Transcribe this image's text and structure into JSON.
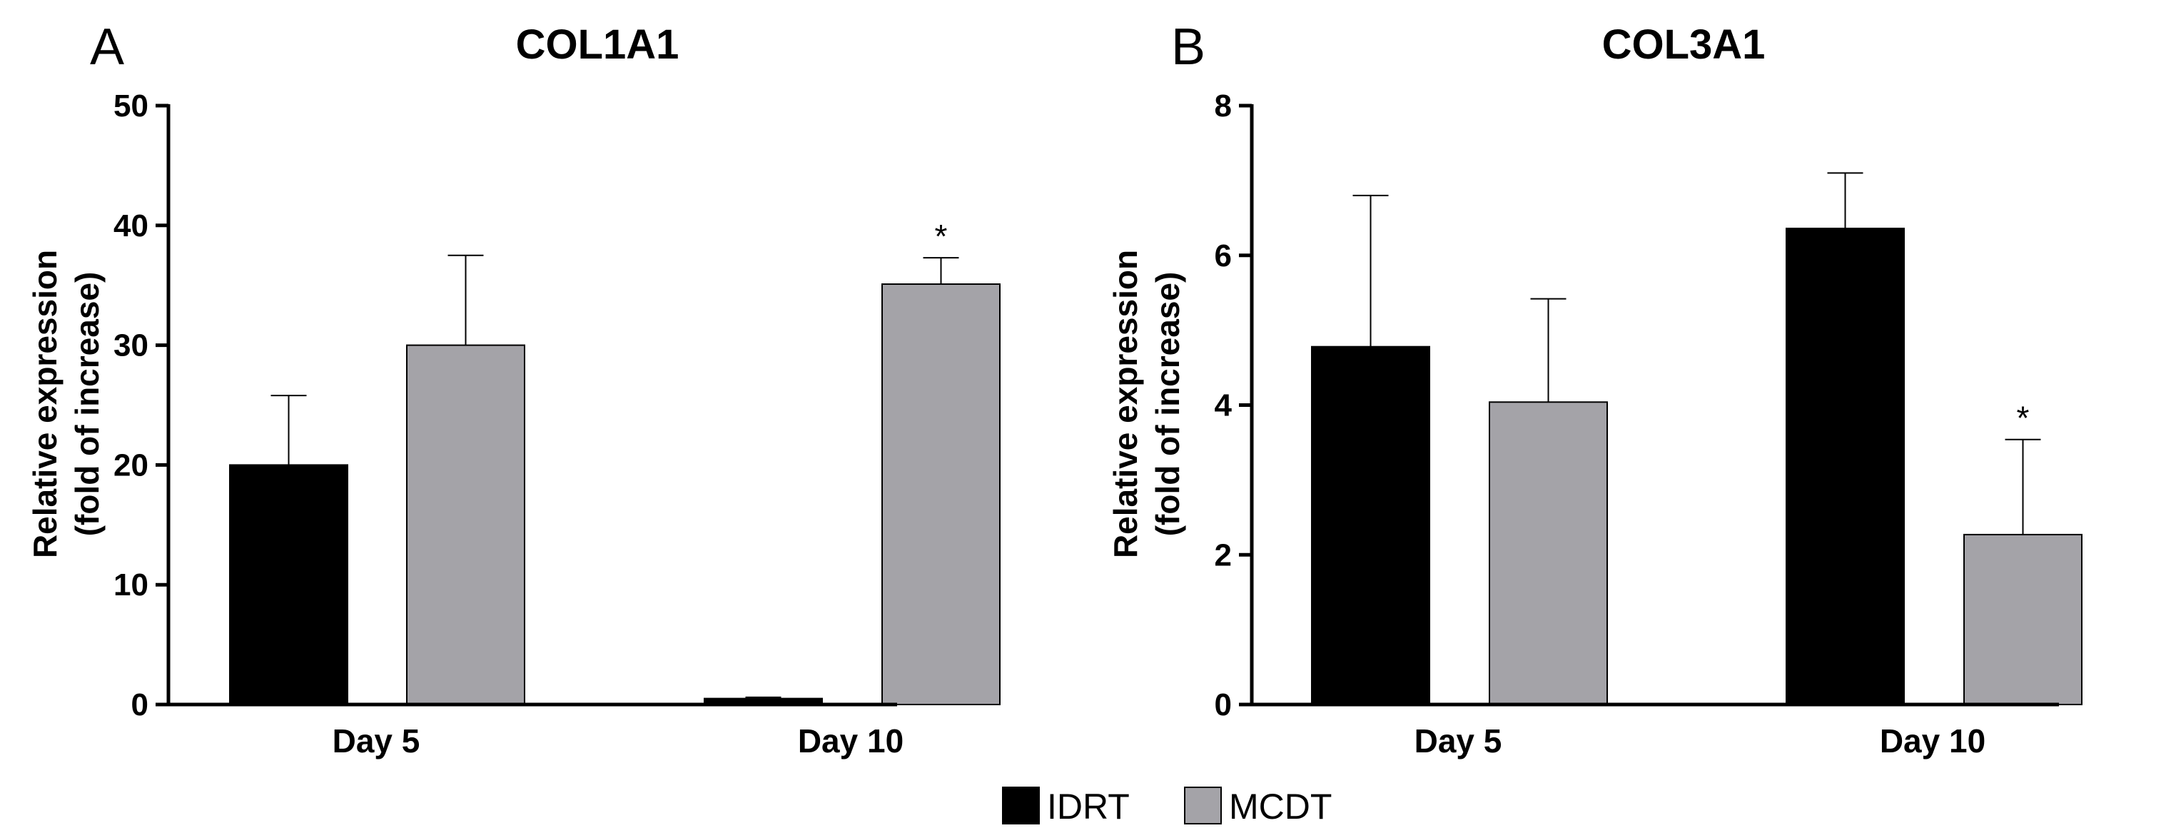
{
  "colors": {
    "IDRT": "#000000",
    "MCDT": "#a4a3a8",
    "axis": "#000000"
  },
  "legend": {
    "items": [
      {
        "name": "IDRT",
        "color": "#000000"
      },
      {
        "name": "MCDT",
        "color": "#a4a3a8"
      }
    ]
  },
  "chart_data": [
    {
      "type": "bar",
      "panel": "A",
      "title": "COL1A1",
      "ylabel_line1": "Relative expression",
      "ylabel_line2": "(fold of increase)",
      "xlabel": "",
      "ylim": [
        0,
        50
      ],
      "yticks": [
        0,
        10,
        20,
        30,
        40,
        50
      ],
      "categories": [
        "Day 5",
        "Day 10"
      ],
      "series": [
        {
          "name": "IDRT",
          "values": [
            20.0,
            0.5
          ],
          "errors": [
            5.8,
            0.1
          ],
          "significant": [
            false,
            false
          ]
        },
        {
          "name": "MCDT",
          "values": [
            30.0,
            35.1
          ],
          "errors": [
            7.5,
            2.2
          ],
          "significant": [
            false,
            true
          ]
        }
      ],
      "significance_marker": "*"
    },
    {
      "type": "bar",
      "panel": "B",
      "title": "COL3A1",
      "ylabel_line1": "Relative expression",
      "ylabel_line2": "(fold of increase)",
      "xlabel": "",
      "ylim": [
        0,
        8
      ],
      "yticks": [
        0,
        2,
        4,
        6,
        8
      ],
      "categories": [
        "Day 5",
        "Day 10"
      ],
      "series": [
        {
          "name": "IDRT",
          "values": [
            4.78,
            6.36
          ],
          "errors": [
            2.02,
            0.74
          ],
          "significant": [
            false,
            false
          ]
        },
        {
          "name": "MCDT",
          "values": [
            4.04,
            2.27
          ],
          "errors": [
            1.38,
            1.27
          ],
          "significant": [
            false,
            true
          ]
        }
      ],
      "significance_marker": "*"
    }
  ]
}
